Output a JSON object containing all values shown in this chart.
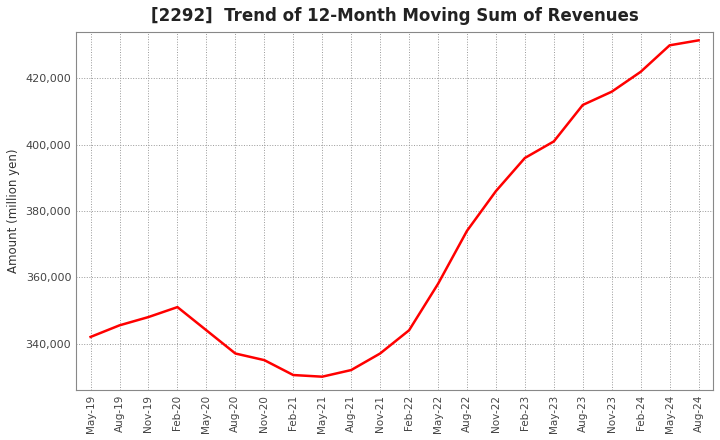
{
  "title": "[2292]  Trend of 12-Month Moving Sum of Revenues",
  "ylabel": "Amount (million yen)",
  "line_color": "#ff0000",
  "line_width": 1.8,
  "background_color": "#ffffff",
  "plot_bg_color": "#ffffff",
  "grid_color": "#999999",
  "ylim": [
    326000,
    434000
  ],
  "yticks": [
    340000,
    360000,
    380000,
    400000,
    420000
  ],
  "values": [
    342000,
    345500,
    348000,
    351000,
    344000,
    337000,
    335000,
    330500,
    330000,
    332000,
    337000,
    344000,
    358000,
    374000,
    386000,
    396000,
    401000,
    412000,
    416000,
    422000,
    430000,
    431500
  ],
  "xtick_labels": [
    "May-19",
    "Aug-19",
    "Nov-19",
    "Feb-20",
    "May-20",
    "Aug-20",
    "Nov-20",
    "Feb-21",
    "May-21",
    "Aug-21",
    "Nov-21",
    "Feb-22",
    "May-22",
    "Aug-22",
    "Nov-22",
    "Feb-23",
    "May-23",
    "Aug-23",
    "Nov-23",
    "Feb-24",
    "May-24",
    "Aug-24"
  ]
}
